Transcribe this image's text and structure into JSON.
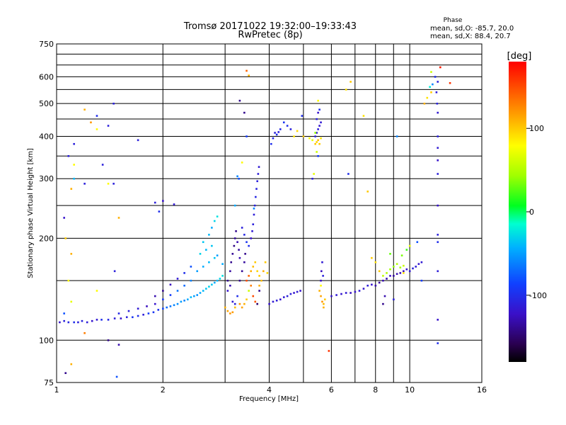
{
  "chart_data": {
    "type": "scatter",
    "title": "Tromsø 20171022 19:32:00–19:33:43",
    "subtitle": "RwPretec (8p)",
    "xlabel": "Frequency [MHz]",
    "ylabel": "Stationary phase Virtual Height [km]",
    "x_scale": "log",
    "y_scale": "log",
    "xlim": [
      1,
      16
    ],
    "ylim": [
      75,
      750
    ],
    "x_ticks": [
      1,
      2,
      4,
      6,
      8,
      10,
      16
    ],
    "y_ticks": [
      75,
      100,
      200,
      300,
      400,
      500,
      600,
      750
    ],
    "x_grid": [
      2,
      3,
      4,
      5,
      6,
      7,
      8,
      9,
      10
    ],
    "y_grid": [
      100,
      150,
      200,
      250,
      300,
      350,
      400,
      450,
      500,
      550,
      600,
      650,
      700
    ],
    "grid": true,
    "stats": {
      "title": "Phase",
      "line1": "mean, sd,O: -85.7, 20.0",
      "line2": "mean, sd,X:  88.4, 20.7"
    },
    "colorbar": {
      "label": "[deg]",
      "range": [
        -180,
        180
      ],
      "ticks": [
        100,
        0,
        -100
      ]
    },
    "points": [
      [
        1.02,
        113,
        -120
      ],
      [
        1.05,
        114,
        -110
      ],
      [
        1.08,
        113,
        -105
      ],
      [
        1.12,
        113,
        -100
      ],
      [
        1.15,
        113,
        -110
      ],
      [
        1.18,
        114,
        -108
      ],
      [
        1.22,
        113,
        -112
      ],
      [
        1.26,
        114,
        -118
      ],
      [
        1.3,
        115,
        -115
      ],
      [
        1.34,
        115,
        -100
      ],
      [
        1.4,
        115,
        -105
      ],
      [
        1.46,
        116,
        -112
      ],
      [
        1.52,
        116,
        -120
      ],
      [
        1.58,
        117,
        -110
      ],
      [
        1.64,
        117,
        -95
      ],
      [
        1.7,
        118,
        -100
      ],
      [
        1.76,
        119,
        -112
      ],
      [
        1.82,
        120,
        -90
      ],
      [
        1.88,
        121,
        -95
      ],
      [
        1.94,
        123,
        -98
      ],
      [
        2.0,
        124,
        -85
      ],
      [
        2.05,
        125,
        -70
      ],
      [
        2.1,
        126,
        -65
      ],
      [
        2.15,
        127,
        -60
      ],
      [
        2.2,
        128,
        -55
      ],
      [
        2.25,
        130,
        -50
      ],
      [
        2.3,
        131,
        -60
      ],
      [
        2.35,
        132,
        -45
      ],
      [
        2.4,
        134,
        -40
      ],
      [
        2.45,
        135,
        -50
      ],
      [
        2.5,
        136,
        -55
      ],
      [
        2.55,
        138,
        -45
      ],
      [
        2.6,
        140,
        -40
      ],
      [
        2.65,
        142,
        -35
      ],
      [
        2.7,
        144,
        -30
      ],
      [
        2.75,
        146,
        -35
      ],
      [
        2.8,
        148,
        -45
      ],
      [
        2.85,
        150,
        -40
      ],
      [
        2.9,
        152,
        -30
      ],
      [
        2.95,
        155,
        -25
      ],
      [
        2.4,
        150,
        -60
      ],
      [
        2.5,
        160,
        -50
      ],
      [
        2.6,
        165,
        -45
      ],
      [
        2.7,
        170,
        -40
      ],
      [
        2.8,
        175,
        -35
      ],
      [
        2.55,
        180,
        -30
      ],
      [
        2.65,
        185,
        -40
      ],
      [
        2.75,
        190,
        -35
      ],
      [
        2.85,
        178,
        -50
      ],
      [
        2.95,
        168,
        -45
      ],
      [
        2.2,
        140,
        -65
      ],
      [
        2.3,
        145,
        -70
      ],
      [
        2.1,
        136,
        -90
      ],
      [
        2.0,
        132,
        -95
      ],
      [
        1.9,
        128,
        -120
      ],
      [
        1.8,
        126,
        -125
      ],
      [
        1.7,
        124,
        -115
      ],
      [
        1.6,
        122,
        -110
      ],
      [
        1.5,
        120,
        -105
      ],
      [
        1.9,
        135,
        -130
      ],
      [
        2.0,
        140,
        -140
      ],
      [
        2.1,
        146,
        -125
      ],
      [
        2.2,
        152,
        -115
      ],
      [
        2.3,
        158,
        -100
      ],
      [
        2.4,
        165,
        -80
      ],
      [
        2.6,
        195,
        -35
      ],
      [
        2.7,
        205,
        -40
      ],
      [
        2.75,
        215,
        -45
      ],
      [
        2.8,
        225,
        -30
      ],
      [
        2.85,
        232,
        -25
      ],
      [
        3.05,
        150,
        -140
      ],
      [
        3.1,
        160,
        -135
      ],
      [
        3.12,
        170,
        -140
      ],
      [
        3.15,
        180,
        -138
      ],
      [
        3.18,
        190,
        -142
      ],
      [
        3.2,
        200,
        -136
      ],
      [
        3.22,
        210,
        -140
      ],
      [
        3.25,
        195,
        -130
      ],
      [
        3.28,
        185,
        -135
      ],
      [
        3.3,
        175,
        -128
      ],
      [
        3.05,
        140,
        -120
      ],
      [
        3.1,
        145,
        -130
      ],
      [
        3.15,
        130,
        -115
      ],
      [
        3.2,
        128,
        -110
      ],
      [
        3.25,
        135,
        -100
      ],
      [
        3.3,
        128,
        120
      ],
      [
        3.35,
        125,
        115
      ],
      [
        3.4,
        128,
        110
      ],
      [
        3.45,
        132,
        100
      ],
      [
        3.5,
        140,
        60
      ],
      [
        3.0,
        125,
        110
      ],
      [
        3.05,
        122,
        115
      ],
      [
        3.1,
        120,
        120
      ],
      [
        3.15,
        121,
        118
      ],
      [
        3.2,
        125,
        105
      ],
      [
        3.3,
        150,
        -140
      ],
      [
        3.35,
        160,
        -138
      ],
      [
        3.4,
        170,
        -135
      ],
      [
        3.42,
        180,
        -140
      ],
      [
        3.45,
        150,
        150
      ],
      [
        3.5,
        155,
        140
      ],
      [
        3.55,
        145,
        130
      ],
      [
        3.6,
        135,
        150
      ],
      [
        3.65,
        130,
        145
      ],
      [
        3.7,
        128,
        -150
      ],
      [
        3.55,
        160,
        110
      ],
      [
        3.6,
        165,
        105
      ],
      [
        3.65,
        170,
        100
      ],
      [
        3.7,
        160,
        95
      ],
      [
        3.75,
        155,
        100
      ],
      [
        3.8,
        150,
        105
      ],
      [
        3.85,
        160,
        110
      ],
      [
        3.9,
        170,
        100
      ],
      [
        3.95,
        158,
        95
      ],
      [
        3.75,
        145,
        110
      ],
      [
        3.55,
        200,
        -120
      ],
      [
        3.58,
        210,
        -115
      ],
      [
        3.6,
        220,
        -110
      ],
      [
        3.62,
        235,
        -112
      ],
      [
        3.64,
        250,
        -110
      ],
      [
        3.66,
        265,
        -105
      ],
      [
        3.68,
        280,
        -108
      ],
      [
        3.7,
        295,
        -110
      ],
      [
        3.72,
        310,
        -112
      ],
      [
        3.74,
        325,
        -115
      ],
      [
        3.5,
        190,
        -100
      ],
      [
        3.45,
        195,
        -95
      ],
      [
        3.4,
        205,
        -105
      ],
      [
        3.35,
        215,
        -110
      ],
      [
        3.62,
        245,
        -60
      ],
      [
        3.25,
        305,
        -60
      ],
      [
        3.28,
        300,
        -80
      ],
      [
        3.2,
        250,
        -45
      ],
      [
        3.4,
        470,
        -140
      ],
      [
        3.45,
        400,
        -90
      ],
      [
        3.35,
        335,
        80
      ],
      [
        3.45,
        625,
        140
      ],
      [
        3.5,
        605,
        110
      ],
      [
        3.3,
        510,
        -140
      ],
      [
        3.75,
        140,
        -140
      ],
      [
        4.0,
        128,
        -120
      ],
      [
        4.1,
        130,
        -115
      ],
      [
        4.2,
        131,
        -112
      ],
      [
        4.3,
        132,
        -118
      ],
      [
        4.4,
        134,
        -115
      ],
      [
        4.5,
        135,
        -110
      ],
      [
        4.6,
        137,
        -112
      ],
      [
        4.7,
        138,
        -118
      ],
      [
        4.8,
        139,
        -115
      ],
      [
        4.9,
        140,
        -120
      ],
      [
        4.05,
        380,
        -100
      ],
      [
        4.1,
        395,
        -105
      ],
      [
        4.15,
        410,
        -110
      ],
      [
        4.2,
        405,
        -100
      ],
      [
        4.25,
        412,
        -110
      ],
      [
        4.3,
        420,
        -105
      ],
      [
        4.4,
        440,
        -95
      ],
      [
        4.5,
        430,
        -100
      ],
      [
        4.6,
        420,
        -110
      ],
      [
        4.7,
        400,
        90
      ],
      [
        4.8,
        415,
        95
      ],
      [
        5.0,
        400,
        100
      ],
      [
        5.2,
        395,
        80
      ],
      [
        5.3,
        390,
        70
      ],
      [
        4.95,
        460,
        -100
      ],
      [
        5.4,
        380,
        100
      ],
      [
        5.45,
        385,
        95
      ],
      [
        5.5,
        390,
        105
      ],
      [
        5.55,
        380,
        100
      ],
      [
        5.6,
        395,
        90
      ],
      [
        5.4,
        400,
        -110
      ],
      [
        5.45,
        410,
        -115
      ],
      [
        5.5,
        420,
        -112
      ],
      [
        5.55,
        430,
        -118
      ],
      [
        5.6,
        440,
        -115
      ],
      [
        5.45,
        450,
        -110
      ],
      [
        5.5,
        470,
        -120
      ],
      [
        5.55,
        480,
        -100
      ],
      [
        5.4,
        410,
        40
      ],
      [
        5.5,
        350,
        -90
      ],
      [
        5.3,
        300,
        -110
      ],
      [
        5.35,
        310,
        70
      ],
      [
        5.5,
        510,
        80
      ],
      [
        5.45,
        360,
        60
      ],
      [
        5.7,
        125,
        110
      ],
      [
        5.6,
        150,
        -120
      ],
      [
        5.62,
        160,
        -125
      ],
      [
        5.65,
        170,
        -115
      ],
      [
        5.68,
        155,
        -110
      ],
      [
        5.55,
        140,
        110
      ],
      [
        5.6,
        135,
        115
      ],
      [
        5.65,
        130,
        120
      ],
      [
        5.7,
        128,
        105
      ],
      [
        5.75,
        132,
        100
      ],
      [
        5.6,
        145,
        80
      ],
      [
        6.0,
        135,
        -120
      ],
      [
        6.2,
        136,
        -115
      ],
      [
        6.4,
        137,
        -118
      ],
      [
        6.6,
        138,
        -115
      ],
      [
        6.8,
        138,
        -125
      ],
      [
        7.0,
        139,
        -120
      ],
      [
        7.2,
        140,
        -115
      ],
      [
        7.4,
        142,
        -118
      ],
      [
        7.6,
        145,
        -112
      ],
      [
        7.8,
        146,
        -120
      ],
      [
        6.7,
        310,
        -100
      ],
      [
        6.8,
        580,
        100
      ],
      [
        7.4,
        460,
        90
      ],
      [
        7.6,
        275,
        100
      ],
      [
        6.6,
        550,
        90
      ],
      [
        8.0,
        145,
        -130
      ],
      [
        8.2,
        148,
        -135
      ],
      [
        8.4,
        150,
        -128
      ],
      [
        8.6,
        152,
        -130
      ],
      [
        8.8,
        155,
        -125
      ],
      [
        9.0,
        155,
        -135
      ],
      [
        9.2,
        157,
        -130
      ],
      [
        9.4,
        158,
        -128
      ],
      [
        9.6,
        160,
        -125
      ],
      [
        9.8,
        162,
        -120
      ],
      [
        10.0,
        160,
        -115
      ],
      [
        10.2,
        163,
        -110
      ],
      [
        10.4,
        165,
        -112
      ],
      [
        10.6,
        168,
        -118
      ],
      [
        10.8,
        170,
        -115
      ],
      [
        8.6,
        158,
        50
      ],
      [
        8.8,
        162,
        45
      ],
      [
        9.0,
        165,
        40
      ],
      [
        9.2,
        168,
        50
      ],
      [
        9.4,
        164,
        45
      ],
      [
        8.4,
        155,
        55
      ],
      [
        9.6,
        166,
        60
      ],
      [
        8.8,
        180,
        30
      ],
      [
        9.5,
        178,
        35
      ],
      [
        9.8,
        185,
        20
      ],
      [
        10.0,
        190,
        70
      ],
      [
        9.6,
        158,
        90
      ],
      [
        8.2,
        160,
        100
      ],
      [
        8.0,
        170,
        90
      ],
      [
        7.8,
        175,
        100
      ],
      [
        8.5,
        135,
        -130
      ],
      [
        8.4,
        128,
        -140
      ],
      [
        9.0,
        132,
        -110
      ],
      [
        10.5,
        195,
        -80
      ],
      [
        10.8,
        150,
        -90
      ],
      [
        11.0,
        500,
        110
      ],
      [
        11.2,
        520,
        90
      ],
      [
        11.5,
        540,
        100
      ],
      [
        11.4,
        560,
        -20
      ],
      [
        11.6,
        570,
        -60
      ],
      [
        11.8,
        600,
        -100
      ],
      [
        12.0,
        580,
        -110
      ],
      [
        11.9,
        540,
        -112
      ],
      [
        11.95,
        500,
        -108
      ],
      [
        12.0,
        470,
        -115
      ],
      [
        12.0,
        400,
        -110
      ],
      [
        12.0,
        370,
        -115
      ],
      [
        12.0,
        340,
        -120
      ],
      [
        12.0,
        310,
        -110
      ],
      [
        12.0,
        250,
        -120
      ],
      [
        12.0,
        205,
        -110
      ],
      [
        12.0,
        195,
        -100
      ],
      [
        12.0,
        160,
        -112
      ],
      [
        12.0,
        115,
        -120
      ],
      [
        12.0,
        98,
        -100
      ],
      [
        12.2,
        640,
        170
      ],
      [
        13.0,
        575,
        160
      ],
      [
        11.5,
        620,
        60
      ],
      [
        9.2,
        400,
        -60
      ],
      [
        5.9,
        93,
        160
      ],
      [
        1.05,
        120,
        -80
      ],
      [
        1.1,
        130,
        70
      ],
      [
        1.08,
        150,
        80
      ],
      [
        1.1,
        180,
        110
      ],
      [
        1.06,
        200,
        100
      ],
      [
        1.05,
        230,
        -120
      ],
      [
        1.1,
        280,
        110
      ],
      [
        1.12,
        300,
        -40
      ],
      [
        1.08,
        350,
        -110
      ],
      [
        1.12,
        380,
        -110
      ],
      [
        1.2,
        480,
        110
      ],
      [
        1.25,
        440,
        120
      ],
      [
        1.3,
        420,
        80
      ],
      [
        1.4,
        430,
        -110
      ],
      [
        1.45,
        500,
        -110
      ],
      [
        1.45,
        290,
        -110
      ],
      [
        1.5,
        230,
        110
      ],
      [
        1.4,
        290,
        80
      ],
      [
        1.2,
        290,
        -110
      ],
      [
        1.1,
        85,
        110
      ],
      [
        1.06,
        80,
        -140
      ],
      [
        1.3,
        140,
        80
      ],
      [
        1.46,
        160,
        -110
      ],
      [
        1.5,
        97,
        -130
      ],
      [
        1.4,
        100,
        -140
      ],
      [
        1.7,
        390,
        -110
      ],
      [
        1.9,
        255,
        -110
      ],
      [
        2.0,
        258,
        -120
      ],
      [
        2.15,
        252,
        -115
      ],
      [
        1.95,
        240,
        -100
      ],
      [
        1.2,
        105,
        130
      ],
      [
        1.48,
        78,
        -80
      ],
      [
        1.35,
        330,
        -110
      ],
      [
        1.12,
        330,
        80
      ],
      [
        1.3,
        460,
        -100
      ]
    ]
  }
}
